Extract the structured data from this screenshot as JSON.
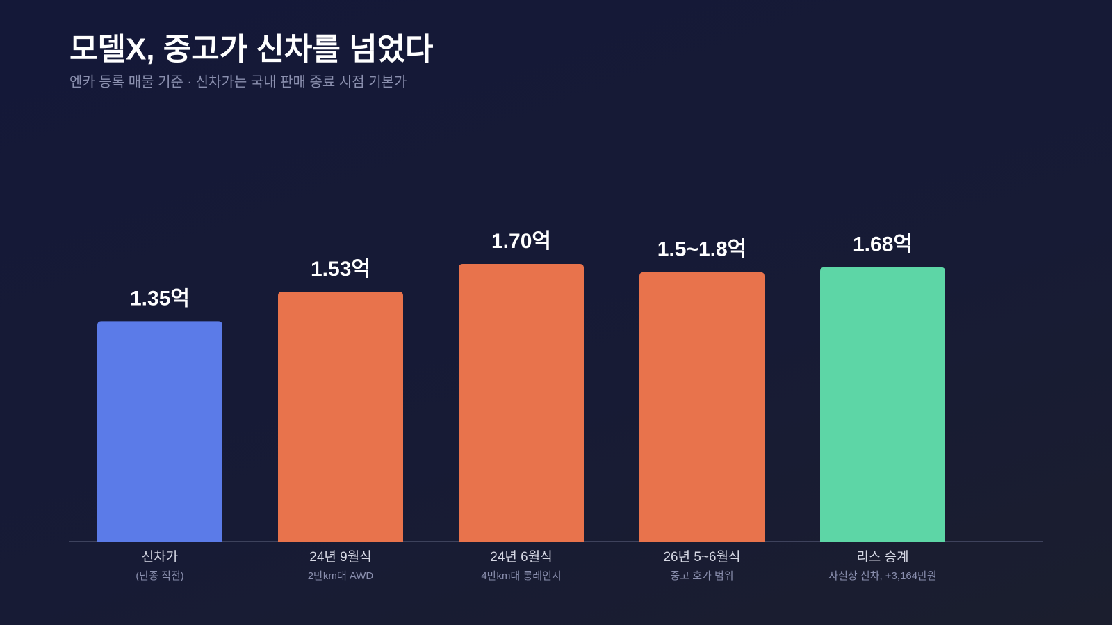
{
  "chart_data": {
    "type": "bar",
    "title": "모델X, 중고가 신차를 넘었다",
    "subtitle": "엔카 등록 매물 기준 · 신차가는 국내 판매 종료 시점 기본가",
    "categories": [
      "신차가",
      "24년 9월식",
      "24년 6월식",
      "26년 5~6월식",
      "리스 승계"
    ],
    "sublabels": [
      "(단종 직전)",
      "2만km대 AWD",
      "4만km대 롱레인지",
      "중고 호가 범위",
      "사실상 신차, +3,164만원"
    ],
    "values": [
      1.35,
      1.53,
      1.7,
      1.65,
      1.68
    ],
    "value_labels": [
      "1.35억",
      "1.53억",
      "1.70억",
      "1.5~1.8억",
      "1.68억"
    ],
    "colors": [
      "#5b7be8",
      "#e8734c",
      "#e8734c",
      "#e8734c",
      "#5dd6a6"
    ]
  }
}
